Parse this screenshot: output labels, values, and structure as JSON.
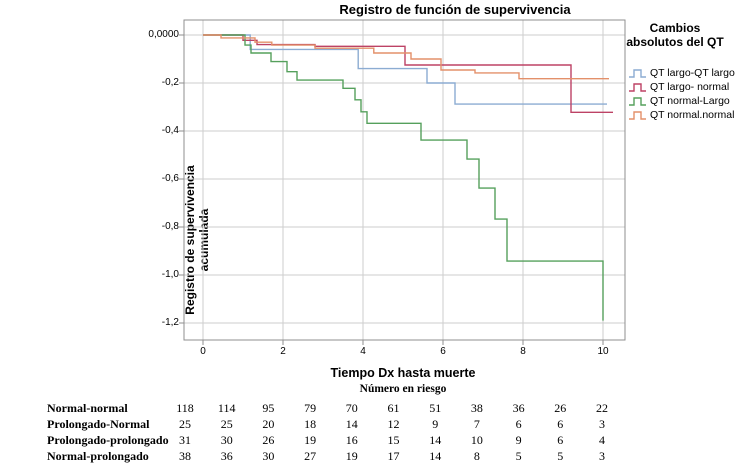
{
  "chart_data": {
    "type": "line",
    "subtype": "step-after-survival",
    "title": "Registro de función de supervivencia",
    "xlabel": "Tiempo Dx hasta muerte",
    "ylabel": "Registro de supervivencia acumulada",
    "xlim": [
      -0.5,
      10.55
    ],
    "ylim": [
      -1.28,
      0.06
    ],
    "grid": true,
    "x_ticks": [
      {
        "label": "0",
        "value": 0
      },
      {
        "label": "2",
        "value": 2
      },
      {
        "label": "4",
        "value": 4
      },
      {
        "label": "6",
        "value": 6
      },
      {
        "label": "8",
        "value": 8
      },
      {
        "label": "10",
        "value": 10
      }
    ],
    "y_ticks": [
      {
        "label": "0,0000",
        "value": 0
      },
      {
        "label": "-0,2",
        "value": -0.2
      },
      {
        "label": "-0,4",
        "value": -0.4
      },
      {
        "label": "-0,6",
        "value": -0.6
      },
      {
        "label": "-0,8",
        "value": -0.8
      },
      {
        "label": "-1,0",
        "value": -1.0
      },
      {
        "label": "-1,2",
        "value": -1.2
      }
    ],
    "legend": {
      "title": "Cambios absolutos del QT",
      "position": "right"
    },
    "series": [
      {
        "name": "QT largo-QT largo",
        "color": "#8CACD2",
        "points": [
          [
            0,
            0
          ],
          [
            1.18,
            -0.06
          ],
          [
            3.88,
            -0.14
          ],
          [
            5.6,
            -0.2
          ],
          [
            6.3,
            -0.288
          ],
          [
            10.1,
            -0.288
          ]
        ]
      },
      {
        "name": "QT largo- normal",
        "color": "#BD4265",
        "points": [
          [
            0,
            0
          ],
          [
            1.0,
            -0.022
          ],
          [
            1.35,
            -0.04
          ],
          [
            2.8,
            -0.047
          ],
          [
            5.05,
            -0.125
          ],
          [
            9.2,
            -0.322
          ],
          [
            10.25,
            -0.322
          ]
        ]
      },
      {
        "name": "QT normal-Largo",
        "color": "#55A05C",
        "points": [
          [
            0,
            0
          ],
          [
            1.05,
            -0.042
          ],
          [
            1.2,
            -0.075
          ],
          [
            1.7,
            -0.111
          ],
          [
            2.1,
            -0.153
          ],
          [
            2.35,
            -0.188
          ],
          [
            3.5,
            -0.222
          ],
          [
            3.8,
            -0.27
          ],
          [
            3.95,
            -0.32
          ],
          [
            4.1,
            -0.368
          ],
          [
            5.45,
            -0.438
          ],
          [
            6.6,
            -0.517
          ],
          [
            6.9,
            -0.638
          ],
          [
            7.3,
            -0.767
          ],
          [
            7.6,
            -0.942
          ],
          [
            10.0,
            -1.19
          ]
        ]
      },
      {
        "name": "QT normal.normal",
        "color": "#E3906A",
        "points": [
          [
            0,
            0
          ],
          [
            0.45,
            -0.012
          ],
          [
            1.3,
            -0.03
          ],
          [
            1.72,
            -0.042
          ],
          [
            2.8,
            -0.055
          ],
          [
            4.27,
            -0.075
          ],
          [
            5.2,
            -0.1
          ],
          [
            5.95,
            -0.146
          ],
          [
            6.8,
            -0.158
          ],
          [
            7.9,
            -0.182
          ],
          [
            10.15,
            -0.182
          ]
        ]
      }
    ],
    "risk_table": {
      "title": "Número en riesgo",
      "times": [
        0,
        1,
        2,
        3,
        4,
        5,
        6,
        7,
        8,
        9,
        10
      ],
      "rows": [
        {
          "label": "Normal-normal",
          "values": [
            118,
            114,
            95,
            79,
            70,
            61,
            51,
            38,
            36,
            26,
            22
          ]
        },
        {
          "label": "Prolongado-Normal",
          "values": [
            25,
            25,
            20,
            18,
            14,
            12,
            9,
            7,
            6,
            6,
            3
          ]
        },
        {
          "label": "Prolongado-prolongado",
          "values": [
            31,
            30,
            26,
            19,
            16,
            15,
            14,
            10,
            9,
            6,
            4
          ]
        },
        {
          "label": "Normal-prolongado",
          "values": [
            38,
            36,
            30,
            27,
            19,
            17,
            14,
            8,
            5,
            5,
            3
          ]
        }
      ]
    },
    "style": {
      "frame_color": "#8f8f8f",
      "grid_color": "#cdcdcd",
      "background": "#ffffff"
    }
  }
}
